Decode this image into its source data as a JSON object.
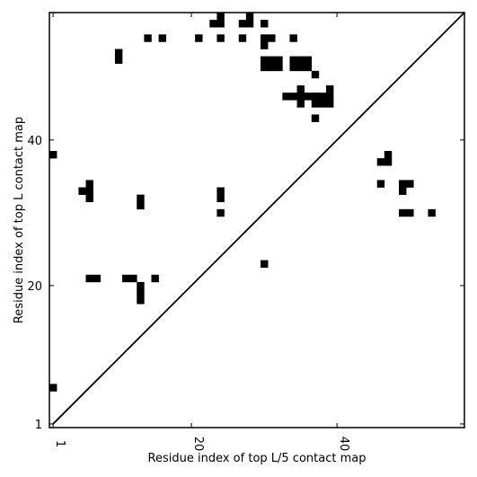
{
  "chart_data": {
    "type": "heatmap",
    "title": "",
    "xlabel": "Residue index of top L/5 contact map",
    "ylabel": "Residue index of top L contact map",
    "xlim": [
      0.5,
      57.5
    ],
    "ylim": [
      0.5,
      57.5
    ],
    "x_ticks": [
      1,
      20,
      40
    ],
    "y_ticks": [
      1,
      20,
      40
    ],
    "diagonal": true,
    "color": "#000000",
    "cells": [
      [
        1,
        6
      ],
      [
        1,
        38
      ],
      [
        6,
        21
      ],
      [
        7,
        21
      ],
      [
        11,
        21
      ],
      [
        12,
        21
      ],
      [
        15,
        21
      ],
      [
        13,
        20
      ],
      [
        13,
        19
      ],
      [
        13,
        18
      ],
      [
        6,
        33
      ],
      [
        6,
        34
      ],
      [
        6,
        32
      ],
      [
        5,
        33
      ],
      [
        13,
        31
      ],
      [
        13,
        32
      ],
      [
        10,
        51
      ],
      [
        10,
        52
      ],
      [
        14,
        54
      ],
      [
        16,
        54
      ],
      [
        21,
        54
      ],
      [
        23,
        56
      ],
      [
        24,
        56
      ],
      [
        24,
        57
      ],
      [
        27,
        56
      ],
      [
        28,
        56
      ],
      [
        28,
        57
      ],
      [
        24,
        54
      ],
      [
        27,
        54
      ],
      [
        24,
        32
      ],
      [
        24,
        33
      ],
      [
        24,
        30
      ],
      [
        30,
        56
      ],
      [
        30,
        54
      ],
      [
        31,
        54
      ],
      [
        30,
        53
      ],
      [
        30,
        50
      ],
      [
        31,
        50
      ],
      [
        32,
        50
      ],
      [
        30,
        51
      ],
      [
        31,
        51
      ],
      [
        32,
        51
      ],
      [
        34,
        50
      ],
      [
        35,
        50
      ],
      [
        36,
        50
      ],
      [
        34,
        51
      ],
      [
        35,
        51
      ],
      [
        36,
        51
      ],
      [
        34,
        54
      ],
      [
        37,
        49
      ],
      [
        33,
        46
      ],
      [
        34,
        46
      ],
      [
        35,
        46
      ],
      [
        36,
        46
      ],
      [
        37,
        46
      ],
      [
        35,
        47
      ],
      [
        35,
        45
      ],
      [
        37,
        45
      ],
      [
        38,
        45
      ],
      [
        39,
        45
      ],
      [
        37,
        46
      ],
      [
        38,
        46
      ],
      [
        39,
        46
      ],
      [
        39,
        47
      ],
      [
        37,
        43
      ],
      [
        30,
        23
      ],
      [
        46,
        37
      ],
      [
        47,
        37
      ],
      [
        47,
        38
      ],
      [
        46,
        34
      ],
      [
        49,
        34
      ],
      [
        50,
        34
      ],
      [
        49,
        33
      ],
      [
        49,
        30
      ],
      [
        50,
        30
      ],
      [
        53,
        30
      ]
    ]
  }
}
